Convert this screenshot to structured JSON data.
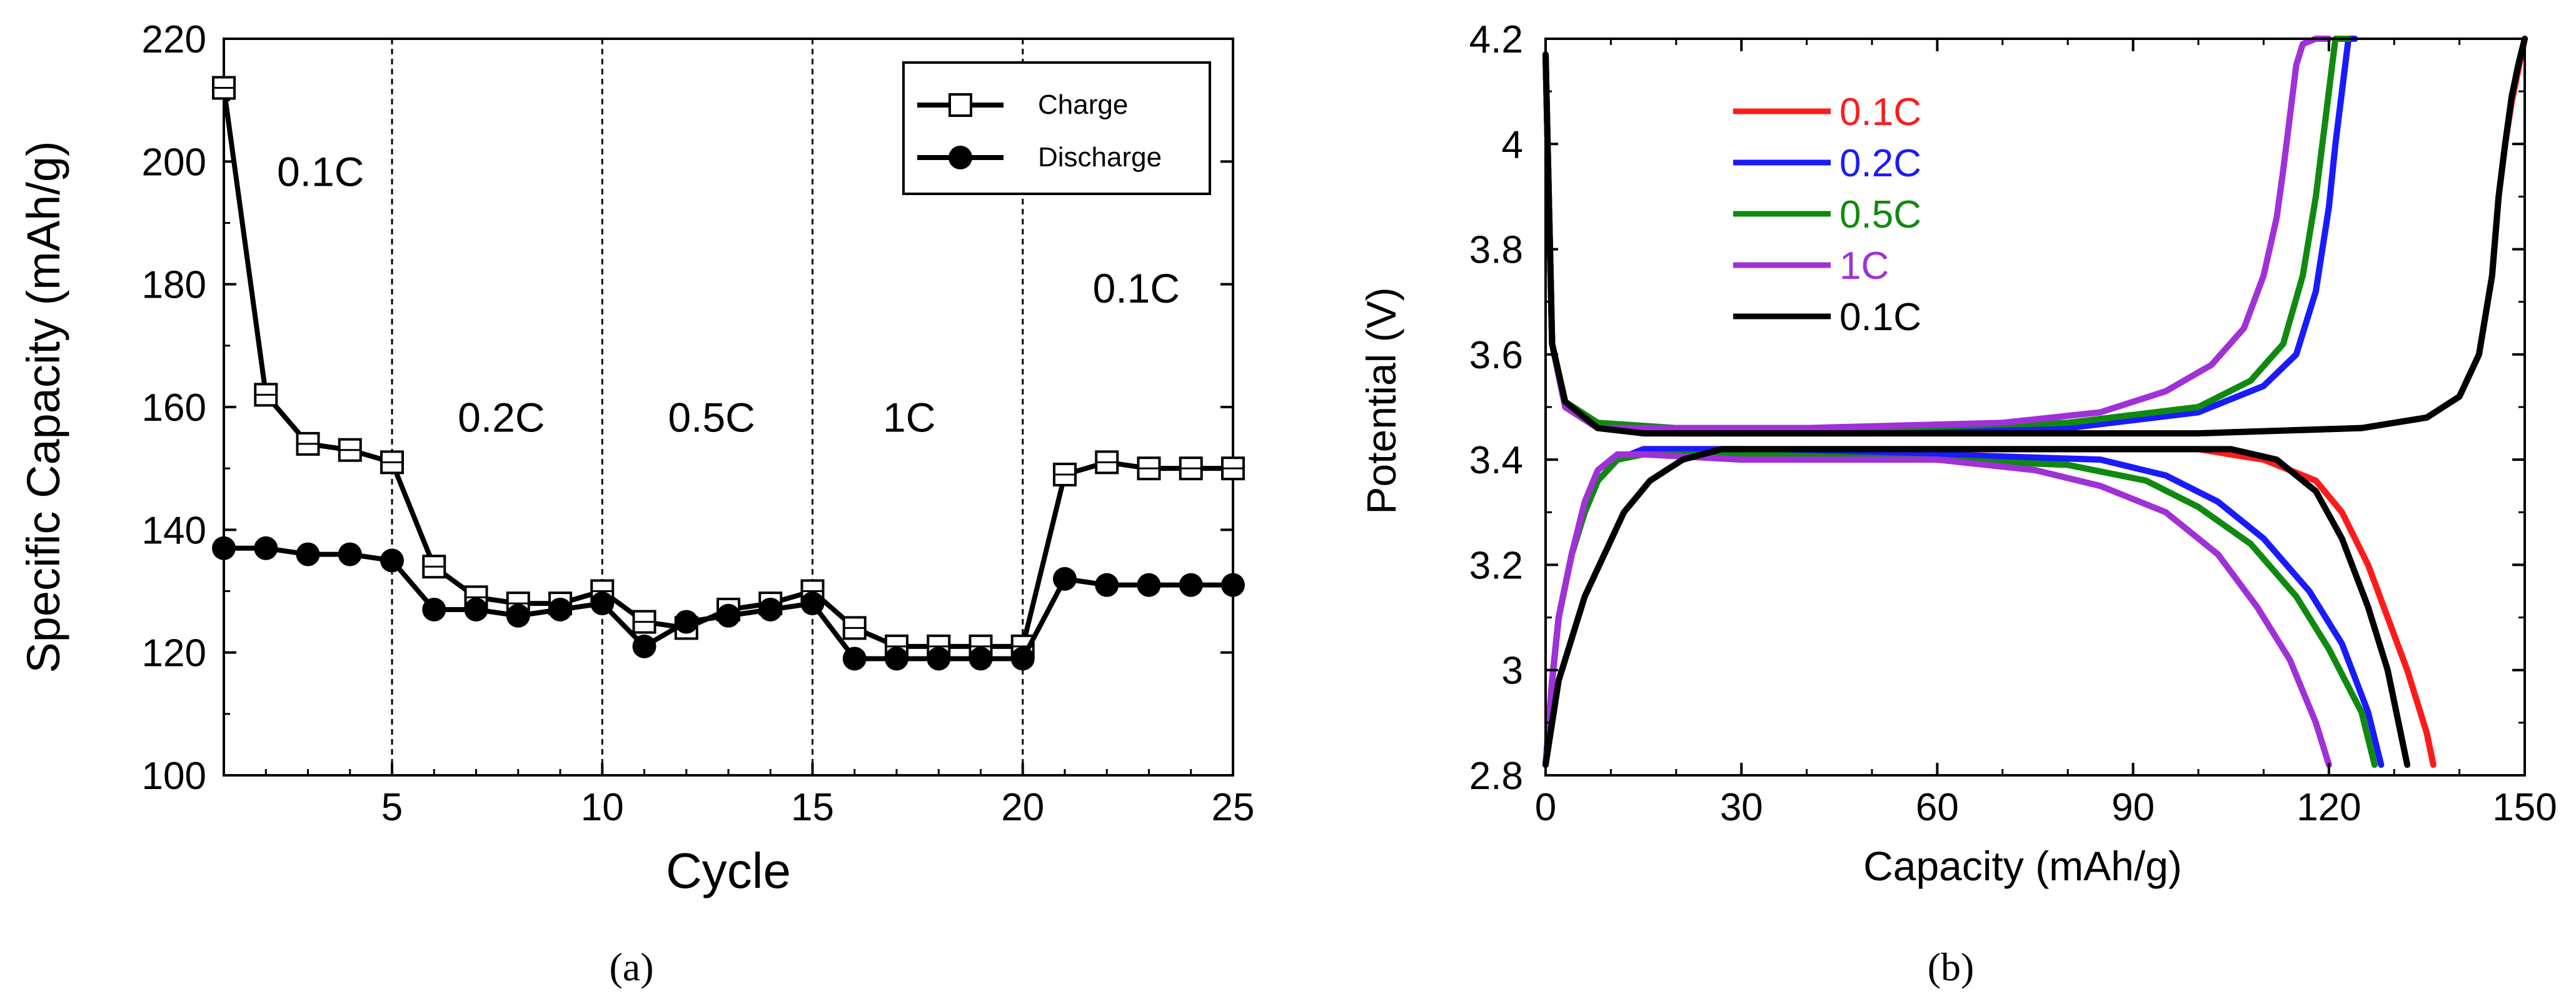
{
  "chart_data": [
    {
      "id": "a",
      "type": "line",
      "caption_letter": "a",
      "xlabel": "Cycle",
      "ylabel": "Specific Capacity (mAh/g)",
      "xlim": [
        1,
        25
      ],
      "ylim": [
        100,
        220
      ],
      "xticks": [
        5,
        10,
        15,
        20,
        25
      ],
      "yticks": [
        100,
        120,
        140,
        160,
        180,
        200,
        220
      ],
      "rate_dividers": [
        5,
        10,
        15,
        20
      ],
      "region_labels": [
        {
          "text": "0.1C",
          "x": 3.3,
          "y": 196
        },
        {
          "text": "0.2C",
          "x": 7.6,
          "y": 156
        },
        {
          "text": "0.5C",
          "x": 12.6,
          "y": 156
        },
        {
          "text": "1C",
          "x": 17.3,
          "y": 156
        },
        {
          "text": "0.1C",
          "x": 22.7,
          "y": 177
        }
      ],
      "legend": {
        "position": "top-right"
      },
      "series": [
        {
          "name": "Charge",
          "marker": "open-square",
          "x": [
            1,
            2,
            3,
            4,
            5,
            6,
            7,
            8,
            9,
            10,
            11,
            12,
            13,
            14,
            15,
            16,
            17,
            18,
            19,
            20,
            21,
            22,
            23,
            24,
            25
          ],
          "values": [
            212,
            162,
            154,
            153,
            151,
            134,
            129,
            128,
            128,
            130,
            125,
            124,
            127,
            128,
            130,
            124,
            121,
            121,
            121,
            121,
            149,
            151,
            150,
            150,
            150
          ]
        },
        {
          "name": "Discharge",
          "marker": "filled-circle",
          "x": [
            1,
            2,
            3,
            4,
            5,
            6,
            7,
            8,
            9,
            10,
            11,
            12,
            13,
            14,
            15,
            16,
            17,
            18,
            19,
            20,
            21,
            22,
            23,
            24,
            25
          ],
          "values": [
            137,
            137,
            136,
            136,
            135,
            127,
            127,
            126,
            127,
            128,
            121,
            125,
            126,
            127,
            128,
            119,
            119,
            119,
            119,
            119,
            132,
            131,
            131,
            131,
            131
          ]
        }
      ]
    },
    {
      "id": "b",
      "type": "line",
      "caption_letter": "b",
      "xlabel": "Capacity (mAh/g)",
      "ylabel": "Potential (V)",
      "xlim": [
        0,
        150
      ],
      "ylim": [
        2.8,
        4.2
      ],
      "xticks": [
        0,
        30,
        60,
        90,
        120,
        150
      ],
      "yticks": [
        2.8,
        3,
        3.2,
        3.4,
        3.6,
        3.8,
        4,
        4.2
      ],
      "ytick_labels": [
        "2.8",
        "3",
        "3.2",
        "3.4",
        "3.6",
        "3.8",
        "4",
        "4.2"
      ],
      "legend": {
        "position": "top-left"
      },
      "series": [
        {
          "name": "0.1C",
          "color": "#ff1a1a",
          "charge": [
            [
              0,
              4.17
            ],
            [
              1,
              3.62
            ],
            [
              3,
              3.5
            ],
            [
              8,
              3.46
            ],
            [
              15,
              3.45
            ],
            [
              60,
              3.45
            ],
            [
              100,
              3.45
            ],
            [
              125,
              3.46
            ],
            [
              135,
              3.48
            ],
            [
              140,
              3.52
            ],
            [
              143,
              3.6
            ],
            [
              145,
              3.75
            ],
            [
              146,
              3.9
            ],
            [
              147,
              4.0
            ],
            [
              148,
              4.08
            ],
            [
              149,
              4.14
            ],
            [
              150,
              4.2
            ]
          ],
          "discharge": [
            [
              0,
              2.82
            ],
            [
              1,
              2.98
            ],
            [
              2,
              3.1
            ],
            [
              4,
              3.22
            ],
            [
              6,
              3.3
            ],
            [
              8,
              3.36
            ],
            [
              11,
              3.4
            ],
            [
              15,
              3.42
            ],
            [
              30,
              3.42
            ],
            [
              60,
              3.42
            ],
            [
              100,
              3.42
            ],
            [
              110,
              3.4
            ],
            [
              118,
              3.36
            ],
            [
              122,
              3.3
            ],
            [
              126,
              3.2
            ],
            [
              129,
              3.1
            ],
            [
              132,
              3.0
            ],
            [
              135,
              2.88
            ],
            [
              136,
              2.82
            ]
          ]
        },
        {
          "name": "0.2C",
          "color": "#1a1aff",
          "charge": [
            [
              0,
              4.17
            ],
            [
              1,
              3.62
            ],
            [
              3,
              3.5
            ],
            [
              8,
              3.46
            ],
            [
              20,
              3.45
            ],
            [
              50,
              3.45
            ],
            [
              80,
              3.46
            ],
            [
              100,
              3.49
            ],
            [
              110,
              3.54
            ],
            [
              115,
              3.6
            ],
            [
              118,
              3.72
            ],
            [
              120,
              3.88
            ],
            [
              121,
              4.0
            ],
            [
              122,
              4.1
            ],
            [
              123,
              4.2
            ],
            [
              124,
              4.2
            ]
          ],
          "discharge": [
            [
              0,
              2.82
            ],
            [
              1,
              2.98
            ],
            [
              2,
              3.1
            ],
            [
              4,
              3.22
            ],
            [
              6,
              3.3
            ],
            [
              8,
              3.36
            ],
            [
              11,
              3.4
            ],
            [
              15,
              3.42
            ],
            [
              30,
              3.42
            ],
            [
              60,
              3.41
            ],
            [
              85,
              3.4
            ],
            [
              95,
              3.37
            ],
            [
              103,
              3.32
            ],
            [
              110,
              3.25
            ],
            [
              117,
              3.15
            ],
            [
              122,
              3.05
            ],
            [
              126,
              2.92
            ],
            [
              128,
              2.82
            ]
          ]
        },
        {
          "name": "0.5C",
          "color": "#0f8a0f",
          "charge": [
            [
              0,
              4.17
            ],
            [
              1,
              3.62
            ],
            [
              3,
              3.51
            ],
            [
              8,
              3.47
            ],
            [
              20,
              3.46
            ],
            [
              50,
              3.46
            ],
            [
              80,
              3.47
            ],
            [
              100,
              3.5
            ],
            [
              108,
              3.55
            ],
            [
              113,
              3.62
            ],
            [
              116,
              3.75
            ],
            [
              118,
              3.9
            ],
            [
              119,
              4.0
            ],
            [
              120,
              4.1
            ],
            [
              121,
              4.2
            ],
            [
              123,
              4.2
            ]
          ],
          "discharge": [
            [
              0,
              2.82
            ],
            [
              1,
              2.98
            ],
            [
              2,
              3.1
            ],
            [
              4,
              3.22
            ],
            [
              6,
              3.3
            ],
            [
              8,
              3.36
            ],
            [
              11,
              3.4
            ],
            [
              15,
              3.41
            ],
            [
              30,
              3.41
            ],
            [
              60,
              3.4
            ],
            [
              80,
              3.39
            ],
            [
              92,
              3.36
            ],
            [
              100,
              3.31
            ],
            [
              108,
              3.24
            ],
            [
              115,
              3.14
            ],
            [
              120,
              3.04
            ],
            [
              125,
              2.92
            ],
            [
              127,
              2.82
            ]
          ]
        },
        {
          "name": "1C",
          "color": "#a030d8",
          "charge": [
            [
              0,
              4.17
            ],
            [
              1,
              3.62
            ],
            [
              3,
              3.5
            ],
            [
              8,
              3.46
            ],
            [
              15,
              3.46
            ],
            [
              40,
              3.46
            ],
            [
              70,
              3.47
            ],
            [
              85,
              3.49
            ],
            [
              95,
              3.53
            ],
            [
              102,
              3.58
            ],
            [
              107,
              3.65
            ],
            [
              110,
              3.75
            ],
            [
              112,
              3.86
            ],
            [
              113,
              3.95
            ],
            [
              114,
              4.05
            ],
            [
              115,
              4.15
            ],
            [
              116,
              4.19
            ],
            [
              118,
              4.2
            ],
            [
              120,
              4.2
            ]
          ],
          "discharge": [
            [
              0,
              2.82
            ],
            [
              1,
              2.98
            ],
            [
              2,
              3.1
            ],
            [
              4,
              3.22
            ],
            [
              6,
              3.32
            ],
            [
              8,
              3.38
            ],
            [
              11,
              3.41
            ],
            [
              15,
              3.41
            ],
            [
              30,
              3.4
            ],
            [
              60,
              3.4
            ],
            [
              75,
              3.38
            ],
            [
              85,
              3.35
            ],
            [
              95,
              3.3
            ],
            [
              103,
              3.22
            ],
            [
              109,
              3.12
            ],
            [
              114,
              3.02
            ],
            [
              118,
              2.9
            ],
            [
              120,
              2.82
            ]
          ]
        },
        {
          "name": "0.1C",
          "color": "#000000",
          "charge": [
            [
              0,
              4.17
            ],
            [
              1,
              3.62
            ],
            [
              3,
              3.51
            ],
            [
              8,
              3.46
            ],
            [
              15,
              3.45
            ],
            [
              60,
              3.45
            ],
            [
              100,
              3.45
            ],
            [
              125,
              3.46
            ],
            [
              135,
              3.48
            ],
            [
              140,
              3.52
            ],
            [
              143,
              3.6
            ],
            [
              145,
              3.75
            ],
            [
              146,
              3.9
            ],
            [
              147,
              4.0
            ],
            [
              148,
              4.09
            ],
            [
              149,
              4.15
            ],
            [
              150,
              4.2
            ]
          ],
          "discharge": [
            [
              0,
              2.82
            ],
            [
              1,
              2.9
            ],
            [
              2,
              2.98
            ],
            [
              4,
              3.06
            ],
            [
              6,
              3.14
            ],
            [
              9,
              3.22
            ],
            [
              12,
              3.3
            ],
            [
              16,
              3.36
            ],
            [
              21,
              3.4
            ],
            [
              27,
              3.42
            ],
            [
              40,
              3.42
            ],
            [
              80,
              3.42
            ],
            [
              105,
              3.42
            ],
            [
              112,
              3.4
            ],
            [
              118,
              3.34
            ],
            [
              122,
              3.25
            ],
            [
              126,
              3.12
            ],
            [
              129,
              3.0
            ],
            [
              131,
              2.88
            ],
            [
              132,
              2.82
            ]
          ]
        }
      ]
    }
  ]
}
